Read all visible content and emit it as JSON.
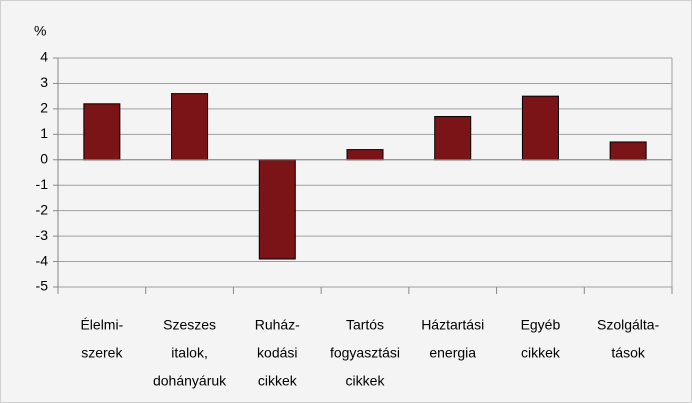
{
  "chart_data": {
    "type": "bar",
    "ylabel": "%",
    "categories": [
      [
        "Élelmi-",
        "szerek"
      ],
      [
        "Szeszes",
        "italok,",
        "dohányáruk"
      ],
      [
        "Ruház-",
        "kodási",
        "cikkek"
      ],
      [
        "Tartós",
        "fogyasztási",
        "cikkek"
      ],
      [
        "Háztartási",
        "energia"
      ],
      [
        "Egyéb",
        "cikkek"
      ],
      [
        "Szolgálta-",
        "tások"
      ]
    ],
    "values": [
      2.2,
      2.6,
      -3.9,
      0.4,
      1.7,
      2.5,
      0.7
    ],
    "color": "#7b1416",
    "ylim": [
      -5,
      4
    ],
    "yticks": [
      -5,
      -4,
      -3,
      -2,
      -1,
      0,
      1,
      2,
      3,
      4
    ],
    "grid": true
  }
}
